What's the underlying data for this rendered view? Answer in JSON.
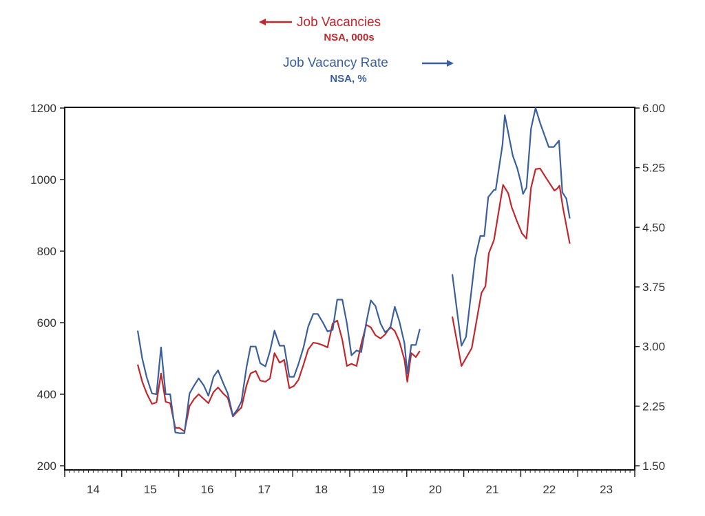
{
  "chart_data": {
    "type": "line",
    "title": "",
    "xlabel": "",
    "x_ticks": [
      "14",
      "15",
      "16",
      "17",
      "18",
      "19",
      "20",
      "21",
      "22",
      "23"
    ],
    "xlim": [
      2014,
      2024
    ],
    "y_left": {
      "ylim": [
        200,
        1200
      ],
      "ticks": [
        "1200",
        "1000",
        "800",
        "600",
        "400",
        "200"
      ],
      "tick_values": [
        1200,
        1000,
        800,
        600,
        400,
        200
      ]
    },
    "y_right": {
      "ylim": [
        1.5,
        6.0
      ],
      "ticks": [
        "6.00",
        "5.25",
        "4.50",
        "3.75",
        "3.00",
        "2.25",
        "1.50"
      ],
      "tick_values": [
        6.0,
        5.25,
        4.5,
        3.75,
        3.0,
        2.25,
        1.5
      ]
    },
    "grid": false,
    "legend": [
      {
        "name": "Job Vacancies",
        "sub": "NSA, 000s",
        "axis": "left",
        "arrow": "←",
        "color": "#c0282e"
      },
      {
        "name": "Job Vacancy Rate",
        "sub": "NSA, %",
        "axis": "right",
        "arrow": "→",
        "color": "#3a5f9e"
      }
    ],
    "series": [
      {
        "name": "Job Vacancies",
        "axis": "left",
        "color": "#c0282e",
        "segments": [
          {
            "x": [
              2015.28,
              2015.36,
              2015.44,
              2015.53,
              2015.61,
              2015.69,
              2015.77,
              2015.85,
              2015.94,
              2016.01,
              2016.1,
              2016.19,
              2016.27,
              2016.35,
              2016.44,
              2016.52,
              2016.61,
              2016.69,
              2016.78,
              2016.86,
              2016.95,
              2017.03,
              2017.1,
              2017.19,
              2017.26,
              2017.35,
              2017.43,
              2017.52,
              2017.6,
              2017.68,
              2017.77,
              2017.85,
              2017.94,
              2018.02,
              2018.1,
              2018.19,
              2018.27,
              2018.36,
              2018.44,
              2018.53,
              2018.61,
              2018.7,
              2018.78,
              2018.87,
              2018.95,
              2019.03,
              2019.12,
              2019.2,
              2019.29,
              2019.37,
              2019.45,
              2019.54,
              2019.62,
              2019.71,
              2019.79,
              2019.87,
              2019.96,
              2020.01,
              2020.08,
              2020.16,
              2020.23
            ],
            "y": [
              483,
              435,
              402,
              373,
              377,
              458,
              379,
              375,
              306,
              306,
              296,
              367,
              387,
              400,
              387,
              375,
              406,
              419,
              402,
              390,
              338,
              352,
              363,
              425,
              458,
              465,
              438,
              435,
              444,
              515,
              488,
              496,
              417,
              423,
              440,
              483,
              525,
              544,
              542,
              537,
              531,
              598,
              606,
              552,
              479,
              485,
              479,
              540,
              594,
              587,
              565,
              556,
              567,
              588,
              577,
              548,
              496,
              435,
              515,
              504,
              521
            ]
          },
          {
            "x": [
              2020.8,
              2020.96,
              2021.14,
              2021.31,
              2021.38,
              2021.44,
              2021.53,
              2021.69,
              2021.78,
              2021.84,
              2021.93,
              2022.02,
              2022.1,
              2022.18,
              2022.26,
              2022.34,
              2022.43,
              2022.59,
              2022.64,
              2022.68,
              2022.74,
              2022.86
            ],
            "y": [
              617,
              479,
              529,
              683,
              702,
              794,
              831,
              985,
              962,
              923,
              885,
              850,
              835,
              977,
              1029,
              1031,
              1008,
              969,
              975,
              983,
              921,
              821
            ]
          }
        ]
      },
      {
        "name": "Job Vacancy Rate",
        "axis": "right",
        "color": "#3a5f9e",
        "segments": [
          {
            "x": [
              2015.28,
              2015.36,
              2015.44,
              2015.53,
              2015.61,
              2015.69,
              2015.77,
              2015.85,
              2015.94,
              2016.01,
              2016.1,
              2016.19,
              2016.27,
              2016.35,
              2016.44,
              2016.52,
              2016.61,
              2016.69,
              2016.78,
              2016.86,
              2016.95,
              2017.03,
              2017.1,
              2017.19,
              2017.26,
              2017.35,
              2017.43,
              2017.52,
              2017.6,
              2017.68,
              2017.77,
              2017.85,
              2017.94,
              2018.02,
              2018.1,
              2018.19,
              2018.27,
              2018.36,
              2018.44,
              2018.53,
              2018.61,
              2018.7,
              2018.78,
              2018.87,
              2018.95,
              2019.03,
              2019.12,
              2019.2,
              2019.29,
              2019.37,
              2019.45,
              2019.54,
              2019.62,
              2019.71,
              2019.79,
              2019.87,
              2019.96,
              2020.01,
              2020.08,
              2020.16,
              2020.23
            ],
            "y": [
              3.2,
              2.85,
              2.61,
              2.41,
              2.4,
              2.99,
              2.4,
              2.4,
              1.92,
              1.91,
              1.91,
              2.41,
              2.51,
              2.6,
              2.51,
              2.38,
              2.62,
              2.7,
              2.54,
              2.41,
              2.13,
              2.21,
              2.31,
              2.74,
              3.0,
              3.0,
              2.79,
              2.75,
              2.94,
              3.2,
              3.01,
              3.01,
              2.62,
              2.62,
              2.78,
              2.99,
              3.25,
              3.41,
              3.41,
              3.3,
              3.19,
              3.21,
              3.59,
              3.59,
              3.29,
              2.89,
              2.95,
              2.93,
              3.3,
              3.58,
              3.51,
              3.29,
              3.18,
              3.23,
              3.5,
              3.32,
              3.04,
              2.66,
              3.02,
              3.02,
              3.22
            ]
          },
          {
            "x": [
              2020.8,
              2020.96,
              2021.04,
              2021.2,
              2021.29,
              2021.36,
              2021.43,
              2021.53,
              2021.56,
              2021.68,
              2021.72,
              2021.86,
              2021.94,
              2022.0,
              2022.04,
              2022.1,
              2022.18,
              2022.26,
              2022.34,
              2022.49,
              2022.58,
              2022.67,
              2022.73,
              2022.8,
              2022.86
            ],
            "y": [
              3.91,
              3.01,
              3.12,
              4.11,
              4.39,
              4.39,
              4.88,
              4.97,
              4.97,
              5.54,
              5.91,
              5.4,
              5.24,
              5.07,
              4.92,
              5.0,
              5.74,
              6.0,
              5.81,
              5.51,
              5.51,
              5.59,
              4.94,
              4.86,
              4.61
            ]
          }
        ]
      }
    ]
  }
}
